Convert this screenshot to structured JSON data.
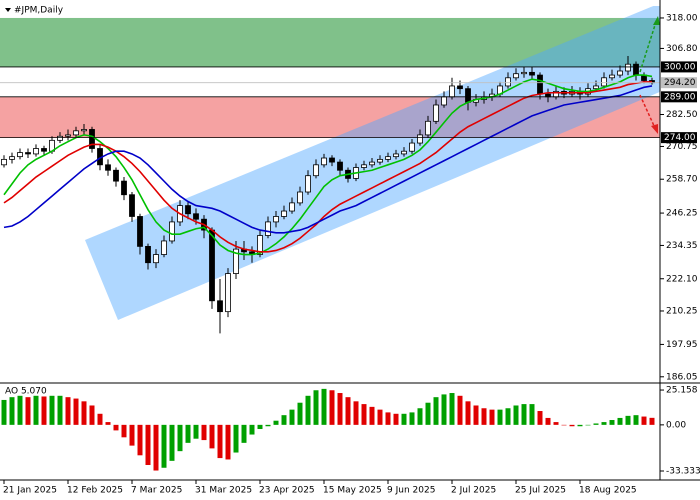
{
  "chart_data": [
    {
      "type": "candlestick",
      "title": "#JPM,Daily",
      "categories": [
        "21 Jan 2025",
        null,
        null,
        null,
        null,
        null,
        null,
        null,
        "12 Feb 2025",
        null,
        null,
        null,
        null,
        null,
        null,
        null,
        "7 Mar 2025",
        null,
        null,
        null,
        null,
        null,
        null,
        null,
        "31 Mar 2025",
        null,
        null,
        null,
        null,
        null,
        null,
        null,
        "23 Apr 2025",
        null,
        null,
        null,
        null,
        null,
        null,
        null,
        "15 May 2025",
        null,
        null,
        null,
        null,
        null,
        null,
        null,
        "9 Jun 2025",
        null,
        null,
        null,
        null,
        null,
        null,
        null,
        "2 Jul 2025",
        null,
        null,
        null,
        null,
        null,
        null,
        null,
        "25 Jul 2025",
        null,
        null,
        null,
        null,
        null,
        null,
        null,
        "18 Aug 2025",
        null,
        null,
        null,
        null,
        null,
        null,
        null,
        null,
        null
      ],
      "candles": [
        [
          264,
          267.5,
          263,
          266
        ],
        [
          266,
          268.5,
          264.5,
          267
        ],
        [
          267,
          270,
          266,
          268.5
        ],
        [
          268.5,
          270,
          266.5,
          268
        ],
        [
          268,
          271.5,
          267,
          270
        ],
        [
          270,
          271,
          267.5,
          269
        ],
        [
          269,
          274.5,
          268,
          273
        ],
        [
          273,
          276,
          272,
          274.5
        ],
        [
          274.5,
          277,
          273,
          275
        ],
        [
          275,
          278,
          274,
          276.5
        ],
        [
          276.5,
          279,
          275,
          277
        ],
        [
          277,
          278,
          268.5,
          270
        ],
        [
          270,
          271.5,
          262,
          264
        ],
        [
          264,
          266,
          260,
          262
        ],
        [
          262,
          263,
          256,
          258
        ],
        [
          258,
          259.5,
          251,
          253
        ],
        [
          253,
          254,
          243,
          245
        ],
        [
          245,
          246,
          231,
          234
        ],
        [
          234,
          235,
          225.5,
          228
        ],
        [
          228,
          233,
          226,
          231
        ],
        [
          231,
          238,
          230,
          236
        ],
        [
          236,
          245,
          235,
          243
        ],
        [
          243,
          251,
          241.5,
          249
        ],
        [
          249,
          250.5,
          244,
          246
        ],
        [
          246,
          248,
          242,
          244
        ],
        [
          244,
          245.5,
          237,
          240
        ],
        [
          240,
          241,
          211,
          214
        ],
        [
          214,
          222,
          202,
          210
        ],
        [
          210,
          226,
          208,
          224
        ],
        [
          224,
          236,
          222,
          233
        ],
        [
          233,
          236,
          229,
          232
        ],
        [
          232,
          234,
          228,
          231
        ],
        [
          231,
          240,
          230,
          238
        ],
        [
          238,
          245,
          237,
          243
        ],
        [
          243,
          247,
          241,
          245
        ],
        [
          245,
          249,
          244,
          247
        ],
        [
          247,
          252,
          246,
          250
        ],
        [
          250,
          256,
          249,
          254
        ],
        [
          254,
          262,
          253,
          260
        ],
        [
          260,
          266,
          259,
          264
        ],
        [
          264,
          268,
          263,
          266.5
        ],
        [
          266.5,
          267.5,
          263.5,
          265
        ],
        [
          265,
          266,
          260,
          262
        ],
        [
          262,
          263,
          257.5,
          259
        ],
        [
          259,
          264.5,
          258,
          263
        ],
        [
          263,
          265.5,
          262,
          264
        ],
        [
          264,
          266.5,
          263,
          265
        ],
        [
          265,
          267.5,
          264,
          266
        ],
        [
          266,
          268.5,
          265,
          267
        ],
        [
          267,
          269.5,
          266,
          268
        ],
        [
          268,
          270.5,
          267,
          269
        ],
        [
          269,
          273.5,
          268,
          272
        ],
        [
          272,
          277,
          271,
          275
        ],
        [
          275,
          282,
          274,
          280
        ],
        [
          280,
          288,
          279,
          286
        ],
        [
          286,
          291,
          285,
          289
        ],
        [
          289,
          296,
          288,
          293
        ],
        [
          293,
          295,
          290,
          292
        ],
        [
          292,
          293,
          284,
          287
        ],
        [
          287,
          290,
          285.5,
          288
        ],
        [
          288,
          291,
          286.5,
          289
        ],
        [
          289,
          292,
          287.5,
          290
        ],
        [
          290,
          294.5,
          289,
          293
        ],
        [
          293,
          298,
          292,
          296
        ],
        [
          296,
          299.5,
          295,
          297.5
        ],
        [
          297.5,
          300,
          296,
          298
        ],
        [
          298,
          300,
          295.5,
          297
        ],
        [
          297,
          298,
          288,
          290
        ],
        [
          290,
          292,
          287,
          289
        ],
        [
          289,
          293,
          288,
          291
        ],
        [
          291,
          292.5,
          288.5,
          290
        ],
        [
          290,
          293,
          289,
          291
        ],
        [
          291,
          292.5,
          288,
          290
        ],
        [
          290,
          294,
          289,
          292
        ],
        [
          292,
          295,
          291,
          293
        ],
        [
          293,
          298,
          292,
          296
        ],
        [
          296,
          299,
          295,
          297
        ],
        [
          297,
          300.5,
          296,
          298.5
        ],
        [
          298.5,
          304,
          297,
          301
        ],
        [
          301,
          302,
          295,
          297
        ],
        [
          297,
          298,
          294,
          295
        ],
        [
          295,
          296,
          293.5,
          294.2
        ]
      ],
      "up_color": "#ffffff",
      "down_color": "#000000",
      "wick_color": "#000000",
      "series": [
        {
          "color": "#00c000",
          "values": [
            253,
            257,
            261,
            264,
            266,
            267.5,
            269,
            271,
            272.5,
            274,
            275,
            274.5,
            272.5,
            270,
            267,
            263,
            258.5,
            253,
            247.5,
            243,
            240,
            238.5,
            238.5,
            239.5,
            240.5,
            241,
            238,
            234.5,
            232.5,
            231.5,
            231,
            231,
            231.5,
            233,
            235,
            237.5,
            240.5,
            244,
            248,
            252,
            256,
            258.5,
            260,
            260.5,
            261,
            261.5,
            262,
            263,
            264,
            265,
            266,
            267.5,
            269.5,
            272.5,
            276,
            279.5,
            283,
            285.5,
            287,
            288,
            288.5,
            289,
            290,
            291.5,
            293,
            294.5,
            295.5,
            295,
            294,
            293,
            292,
            291.5,
            291,
            291,
            291.5,
            292.5,
            293.5,
            294.5,
            296,
            297,
            297,
            296.5
          ]
        },
        {
          "color": "#e00000",
          "values": [
            250,
            252,
            254.5,
            257,
            259.5,
            261.5,
            263.5,
            265.5,
            267.5,
            269,
            270.5,
            271.5,
            271.5,
            270.5,
            269,
            267,
            264.5,
            261.5,
            258,
            254.5,
            251,
            248,
            246,
            244.5,
            243,
            242,
            240,
            237.5,
            235.5,
            234,
            233,
            232.5,
            232,
            232,
            232.5,
            233.5,
            235,
            237,
            239.5,
            242,
            245,
            247.5,
            249.5,
            251,
            252.5,
            254,
            255.5,
            257,
            258.5,
            260,
            261.5,
            263,
            264.5,
            266.5,
            268.5,
            271,
            273.5,
            276,
            278,
            279.5,
            281,
            282.5,
            284,
            285.5,
            287,
            288.5,
            289.5,
            290,
            290.5,
            290.5,
            290.5,
            290.5,
            290.5,
            290.5,
            291,
            291.5,
            292,
            292.5,
            293.5,
            294,
            294.5,
            294.5
          ]
        },
        {
          "color": "#0000c8",
          "values": [
            241,
            241.5,
            243,
            245,
            247.5,
            250,
            252.5,
            255,
            257.5,
            260,
            262.5,
            264.5,
            266.5,
            268,
            269,
            269,
            268,
            266.5,
            264,
            261,
            258,
            255,
            252.5,
            250.5,
            249,
            248.5,
            248,
            247,
            245.5,
            244,
            242.5,
            241,
            240,
            239.5,
            239,
            239,
            239.5,
            240,
            241,
            242.5,
            244,
            245.5,
            247,
            248,
            249,
            250.5,
            252,
            253.5,
            255,
            256.5,
            258,
            259.5,
            261,
            262.5,
            264,
            265.5,
            267,
            268.5,
            270,
            271.5,
            273,
            274.5,
            276,
            277.5,
            279,
            280.5,
            282,
            283,
            284,
            285,
            286,
            286.5,
            287,
            287.5,
            288,
            288.5,
            289,
            289.5,
            290.5,
            291.5,
            292.5,
            293
          ]
        }
      ],
      "ylim": [
        184.5,
        322.4
      ],
      "yticks": [
        {
          "value": 318,
          "label": "318.00"
        },
        {
          "value": 306.8,
          "label": "306.80"
        },
        {
          "value": 282.5,
          "label": "282.50"
        },
        {
          "value": 270.75,
          "label": "270.75"
        },
        {
          "value": 258.7,
          "label": "258.70"
        },
        {
          "value": 246.25,
          "label": "246.25"
        },
        {
          "value": 234.35,
          "label": "234.35"
        },
        {
          "value": 222.1,
          "label": "222.10"
        },
        {
          "value": 210.25,
          "label": "210.25"
        },
        {
          "value": 197.95,
          "label": "197.95"
        },
        {
          "value": 186.05,
          "label": "186.05"
        }
      ],
      "levels": [
        {
          "value": 300,
          "label": "300.00",
          "color": "#000000"
        },
        {
          "value": 294.2,
          "label": "294.20",
          "color": "#c0c0c0"
        },
        {
          "value": 289,
          "label": "289.00",
          "color": "#000000"
        },
        {
          "value": 274,
          "label": "274.00",
          "color": "#000000"
        }
      ],
      "zones": [
        {
          "from": 300,
          "to": 318,
          "color": "#3c9f4c"
        },
        {
          "from": 274,
          "to": 289,
          "color": "#f07070"
        }
      ]
    },
    {
      "type": "bar",
      "title": "AO 5.070",
      "values": [
        18,
        20,
        21,
        20,
        21,
        20.5,
        21,
        21,
        20,
        19,
        17,
        14,
        8,
        2,
        -4,
        -9,
        -15,
        -22,
        -29,
        -33,
        -31,
        -26,
        -19,
        -13,
        -10,
        -11,
        -17,
        -24,
        -25,
        -20,
        -13,
        -7,
        -3,
        -1,
        3,
        7,
        11,
        16,
        21,
        25,
        26,
        25,
        23,
        20,
        17,
        15,
        13,
        11,
        9,
        8,
        8,
        9,
        12,
        16,
        20,
        22,
        23,
        21,
        17,
        14,
        12,
        11,
        11,
        12,
        14,
        15,
        15,
        10,
        5,
        2,
        0,
        -1,
        -1,
        0,
        1,
        2,
        3.5,
        5,
        6.5,
        7,
        6,
        5.07
      ],
      "up_color": "#00a000",
      "down_color": "#e00000",
      "ylim": [
        -38.4,
        28.8
      ],
      "yticks": [
        {
          "value": 25.158,
          "label": "25.158"
        },
        {
          "value": 0,
          "label": "0.00"
        },
        {
          "value": -33.333,
          "label": "-33.333"
        }
      ]
    }
  ]
}
